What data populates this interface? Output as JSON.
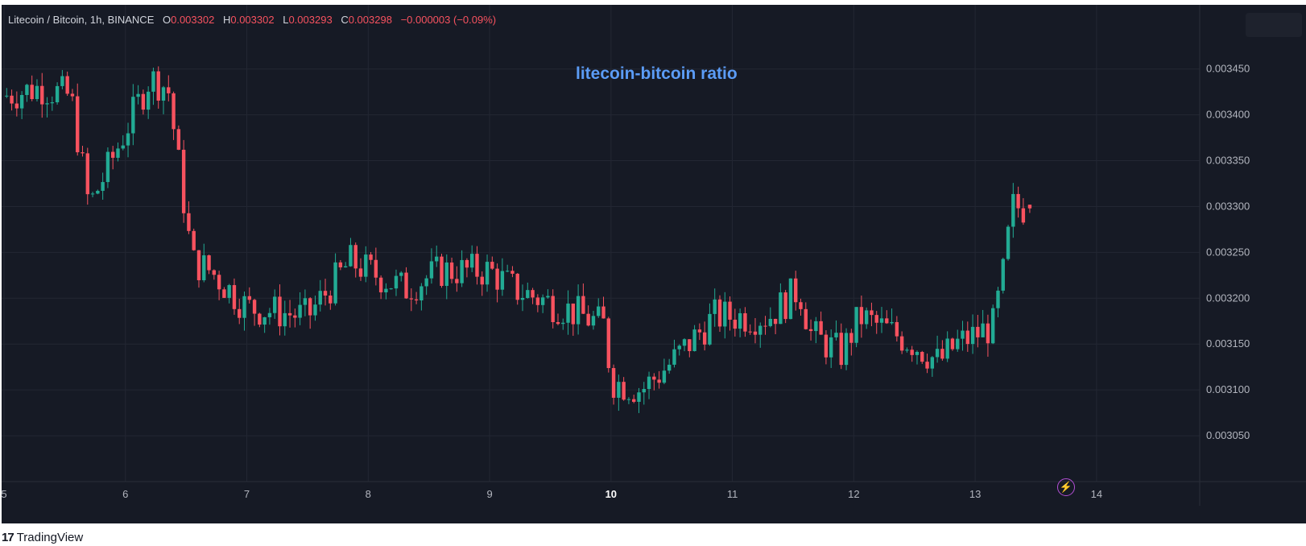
{
  "header": {
    "symbol": "Litecoin / Bitcoin, 1h, BINANCE",
    "o_label": "O",
    "o_value": "0.003302",
    "h_label": "H",
    "h_value": "0.003302",
    "l_label": "L",
    "l_value": "0.003293",
    "c_label": "C",
    "c_value": "0.003298",
    "change": "−0.000003 (−0.09%)"
  },
  "annotation": "litecoin-bitcoin ratio",
  "footer": {
    "logo_mark": "17",
    "brand": "TradingView"
  },
  "icons": {
    "flash": "lightning-bolt-icon"
  },
  "colors": {
    "background": "#161a25",
    "grid": "#232733",
    "up": "#22ab94",
    "down": "#f7525f",
    "axis_text": "#b2b5be",
    "annotation": "#5b9cf6"
  },
  "chart_data": {
    "type": "candlestick",
    "ylim": [
      0.003,
      0.00352
    ],
    "yticks": [
      "0.003050",
      "0.003100",
      "0.003150",
      "0.003200",
      "0.003250",
      "0.003300",
      "0.003350",
      "0.003400",
      "0.003450"
    ],
    "xticks": [
      {
        "label": "5",
        "x": 5.0,
        "bold": false
      },
      {
        "label": "6",
        "x": 6.0,
        "bold": false
      },
      {
        "label": "7",
        "x": 7.0,
        "bold": false
      },
      {
        "label": "8",
        "x": 8.0,
        "bold": false
      },
      {
        "label": "9",
        "x": 9.0,
        "bold": false
      },
      {
        "label": "10",
        "x": 10.0,
        "bold": true
      },
      {
        "label": "11",
        "x": 11.0,
        "bold": false
      },
      {
        "label": "12",
        "x": 12.0,
        "bold": false
      },
      {
        "label": "13",
        "x": 13.0,
        "bold": false
      },
      {
        "label": "14",
        "x": 14.0,
        "bold": false
      }
    ],
    "xlim": [
      4.98,
      14.85
    ],
    "anchors": [
      [
        4.98,
        0.00342
      ],
      [
        5.3,
        0.00343
      ],
      [
        5.55,
        0.00342
      ],
      [
        5.7,
        0.0033
      ],
      [
        5.85,
        0.00334
      ],
      [
        6.2,
        0.00344
      ],
      [
        6.35,
        0.00343
      ],
      [
        6.55,
        0.00324
      ],
      [
        6.7,
        0.00323
      ],
      [
        7.0,
        0.00319
      ],
      [
        7.5,
        0.00318
      ],
      [
        7.85,
        0.00324
      ],
      [
        8.3,
        0.00321
      ],
      [
        8.6,
        0.00323
      ],
      [
        9.0,
        0.00323
      ],
      [
        9.2,
        0.00321
      ],
      [
        9.6,
        0.00319
      ],
      [
        9.95,
        0.00317
      ],
      [
        10.0,
        0.00311
      ],
      [
        10.25,
        0.0031
      ],
      [
        10.5,
        0.00313
      ],
      [
        10.85,
        0.00318
      ],
      [
        11.3,
        0.00318
      ],
      [
        11.55,
        0.00321
      ],
      [
        11.65,
        0.00316
      ],
      [
        11.9,
        0.00314
      ],
      [
        12.05,
        0.00318
      ],
      [
        12.5,
        0.00315
      ],
      [
        12.7,
        0.00313
      ],
      [
        12.85,
        0.00315
      ],
      [
        13.15,
        0.00317
      ],
      [
        13.25,
        0.00324
      ],
      [
        13.3,
        0.0033
      ],
      [
        13.45,
        0.003298
      ]
    ],
    "last": {
      "x": 13.45,
      "open": 0.003302,
      "high": 0.003302,
      "low": 0.003293,
      "close": 0.003298
    }
  }
}
